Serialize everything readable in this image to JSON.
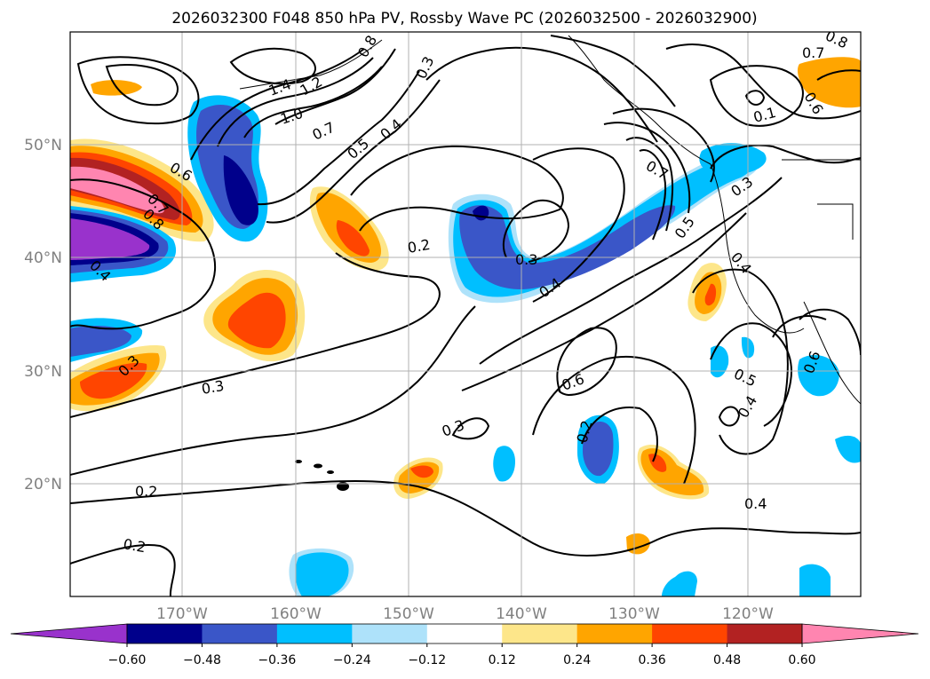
{
  "title": "2026032300 F048 850 hPa PV, Rossby Wave PC (2026032500 - 2026032900)",
  "map": {
    "lat_labels": [
      "50°N",
      "40°N",
      "30°N",
      "20°N"
    ],
    "lon_labels": [
      "170°W",
      "160°W",
      "150°W",
      "140°W",
      "130°W",
      "120°W"
    ],
    "gridlines": true,
    "contour_labels": [
      "1.4",
      "1.2",
      "1.0",
      "0.7",
      "0.5",
      "0.4",
      "0.3",
      "0.8",
      "0.6",
      "0.7",
      "0.8",
      "0.4",
      "0.2",
      "0.3",
      "0.4",
      "0.6",
      "0.7",
      "0.5",
      "0.3",
      "0.4",
      "0.3",
      "0.5",
      "0.4",
      "0.4",
      "0.3",
      "0.2",
      "0.2",
      "0.3",
      "0.6",
      "0.2",
      "0.1",
      "0.7",
      "0.6",
      "0.8"
    ]
  },
  "colorbar": {
    "ticks": [
      "−0.60",
      "−0.48",
      "−0.36",
      "−0.24",
      "−0.12",
      "0.12",
      "0.24",
      "0.36",
      "0.48",
      "0.60"
    ],
    "colors": [
      "#9932cc",
      "#00008b",
      "#3a56c8",
      "#00bfff",
      "#aee2fa",
      "#ffffff",
      "#fde68a",
      "#ffa500",
      "#ff4500",
      "#b22222",
      "#ff85b0"
    ]
  }
}
